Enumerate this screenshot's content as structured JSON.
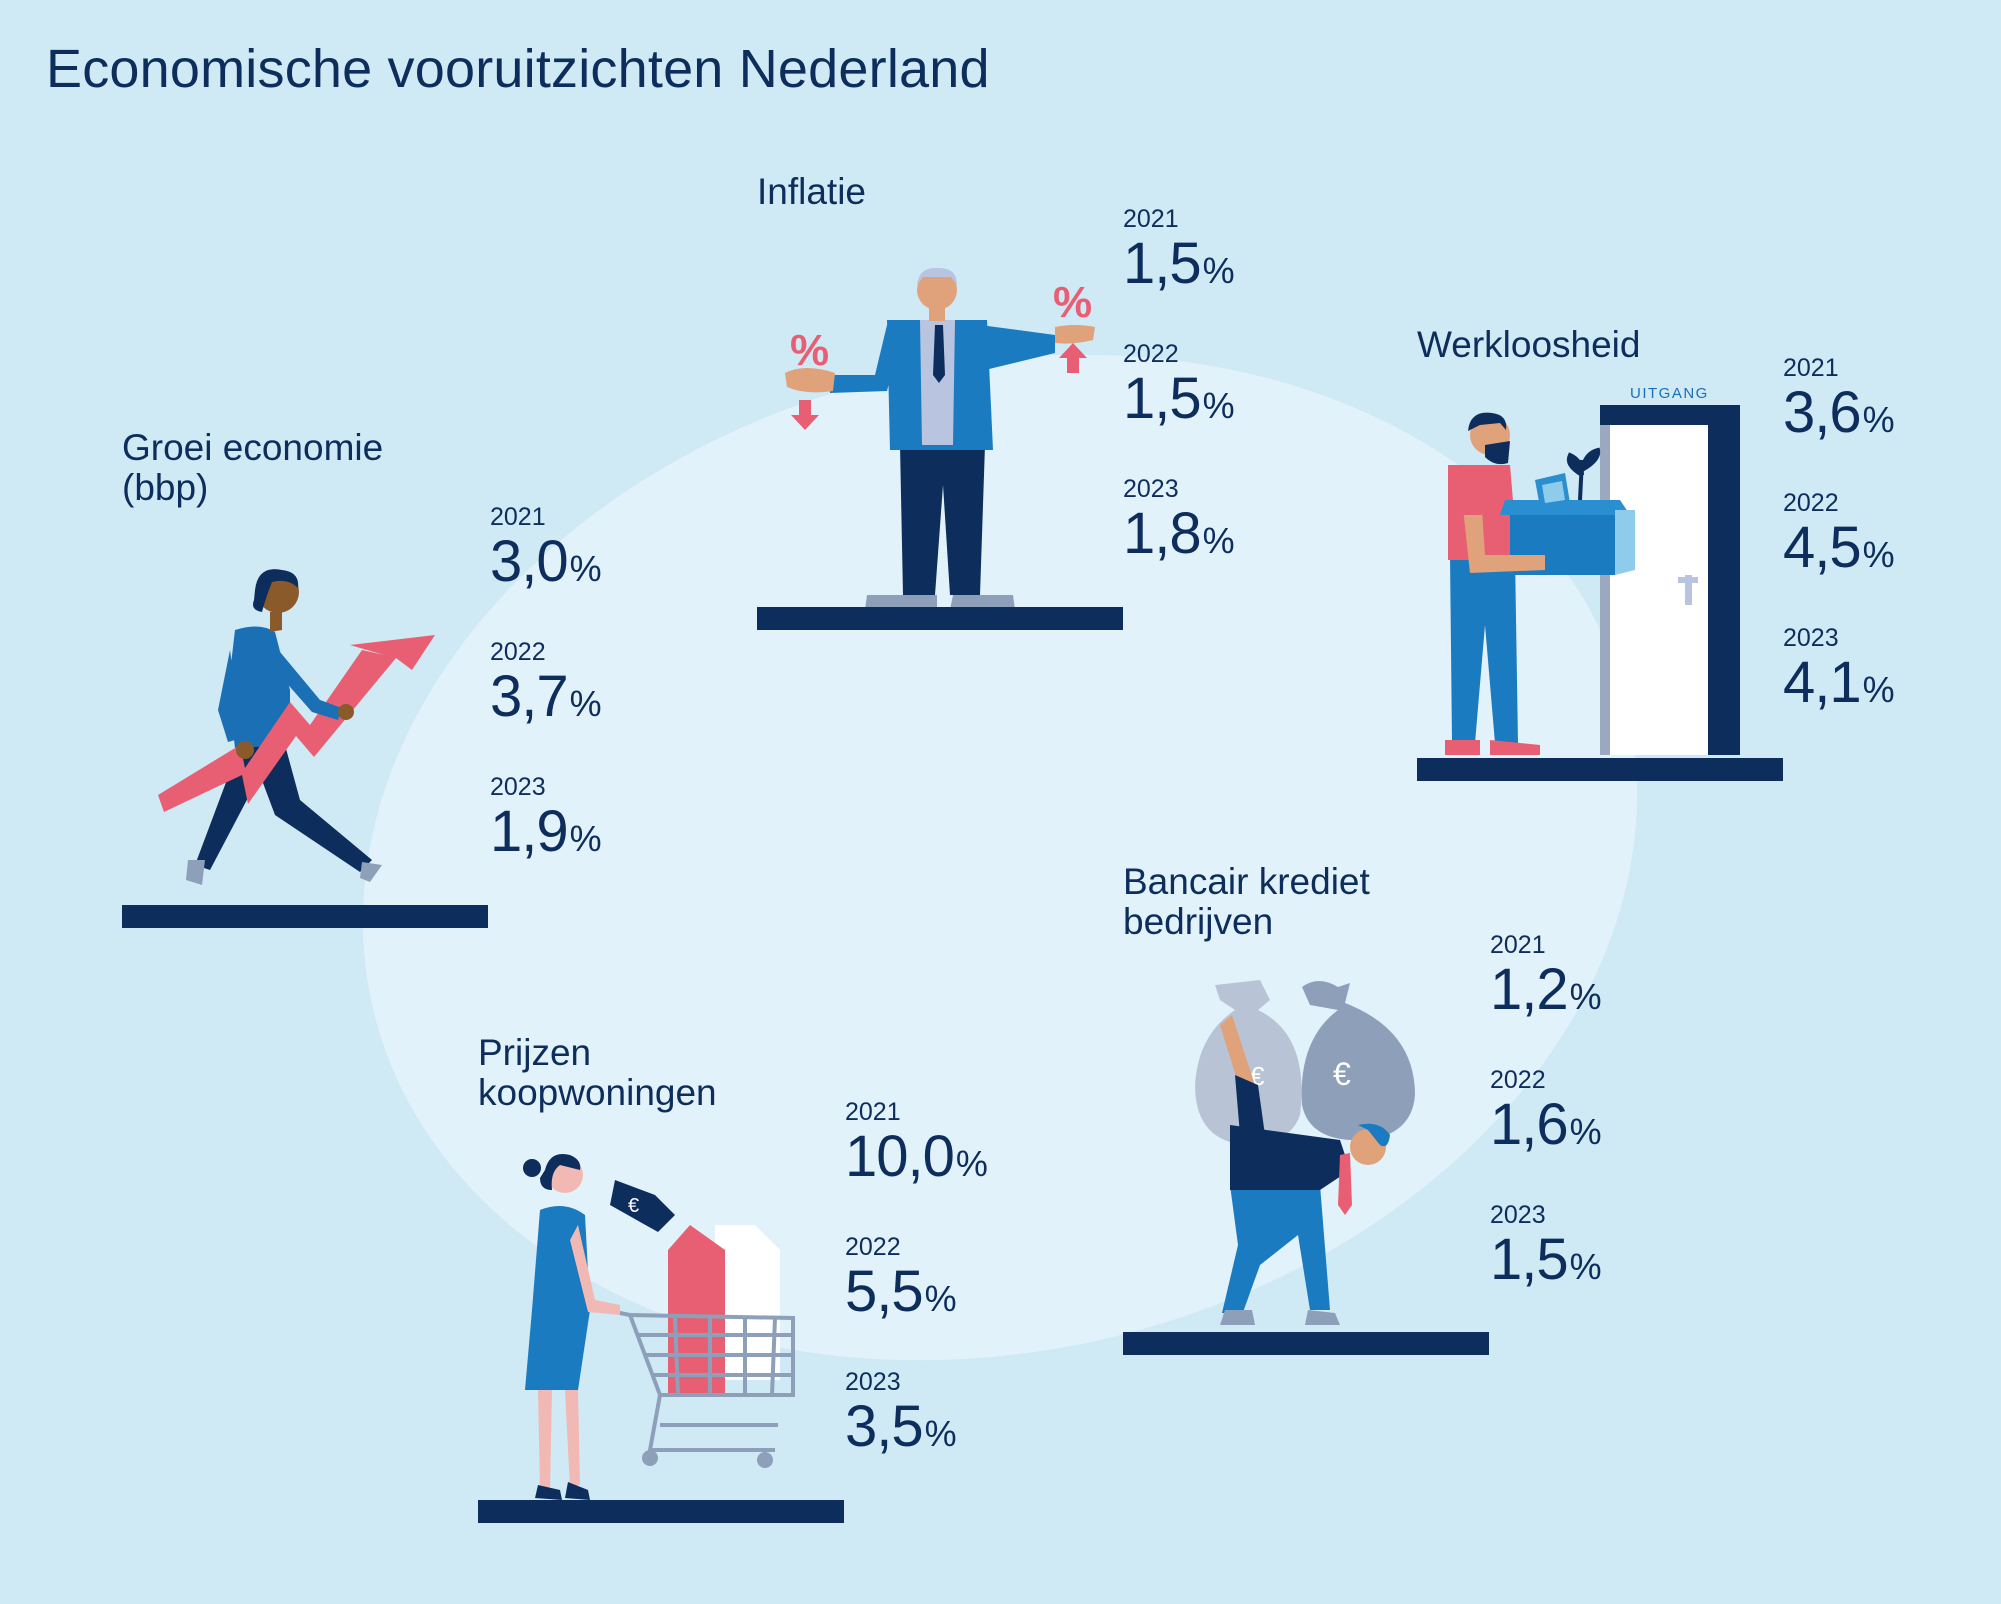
{
  "title": "Economische vooruitzichten Nederland",
  "blocks": {
    "groei": {
      "title": "Groei economie\n(bbp)",
      "stats": [
        {
          "year": "2021",
          "value": "3,0",
          "unit": "%"
        },
        {
          "year": "2022",
          "value": "3,7",
          "unit": "%"
        },
        {
          "year": "2023",
          "value": "1,9",
          "unit": "%"
        }
      ]
    },
    "inflatie": {
      "title": "Inflatie",
      "stats": [
        {
          "year": "2021",
          "value": "1,5",
          "unit": "%"
        },
        {
          "year": "2022",
          "value": "1,5",
          "unit": "%"
        },
        {
          "year": "2023",
          "value": "1,8",
          "unit": "%"
        }
      ]
    },
    "werkloosheid": {
      "title": "Werkloosheid",
      "door_label": "UITGANG",
      "stats": [
        {
          "year": "2021",
          "value": "3,6",
          "unit": "%"
        },
        {
          "year": "2022",
          "value": "4,5",
          "unit": "%"
        },
        {
          "year": "2023",
          "value": "4,1",
          "unit": "%"
        }
      ]
    },
    "krediet": {
      "title": "Bancair krediet\nbedrijven",
      "stats": [
        {
          "year": "2021",
          "value": "1,2",
          "unit": "%"
        },
        {
          "year": "2022",
          "value": "1,6",
          "unit": "%"
        },
        {
          "year": "2023",
          "value": "1,5",
          "unit": "%"
        }
      ]
    },
    "woningen": {
      "title": "Prijzen\nkoopwoningen",
      "stats": [
        {
          "year": "2021",
          "value": "10,0",
          "unit": "%"
        },
        {
          "year": "2022",
          "value": "5,5",
          "unit": "%"
        },
        {
          "year": "2023",
          "value": "3,5",
          "unit": "%"
        }
      ]
    }
  },
  "colors": {
    "background": "#cfe9f5",
    "ellipse": "#e2f2fa",
    "text_navy": "#0d2d5c",
    "accent_red": "#e85f74",
    "accent_blue": "#1a7bc0"
  }
}
